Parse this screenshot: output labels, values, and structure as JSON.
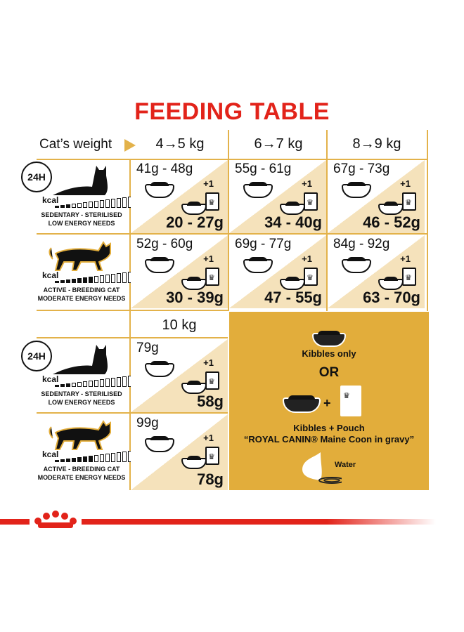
{
  "title": "FEEDING TABLE",
  "header": {
    "weight_label": "Cat’s weight",
    "cols": [
      "4→5 kg",
      "6→7 kg",
      "8→9 kg"
    ],
    "col4": "10 kg"
  },
  "profiles": [
    {
      "kcal": "kcal",
      "line1": "SEDENTARY - STERILISED",
      "line2": "LOW ENERGY NEEDS",
      "badge": "24H"
    },
    {
      "kcal": "kcal",
      "line1": "ACTIVE - BREEDING CAT",
      "line2": "MODERATE ENERGY NEEDS"
    }
  ],
  "rows": [
    [
      {
        "kibbles": "41g - 48g",
        "mixed": "20 - 27g"
      },
      {
        "kibbles": "55g - 61g",
        "mixed": "34 - 40g"
      },
      {
        "kibbles": "67g - 73g",
        "mixed": "46 - 52g"
      }
    ],
    [
      {
        "kibbles": "52g - 60g",
        "mixed": "30 - 39g"
      },
      {
        "kibbles": "69g - 77g",
        "mixed": "47 - 55g"
      },
      {
        "kibbles": "84g - 92g",
        "mixed": "63 - 70g"
      }
    ]
  ],
  "rows10": [
    {
      "kibbles": "79g",
      "mixed": "58g"
    },
    {
      "kibbles": "99g",
      "mixed": "78g"
    }
  ],
  "plus_one": "+1",
  "legend": {
    "kibbles_only": "Kibbles only",
    "or": "OR",
    "plus": "+",
    "kibbles_pouch": "Kibbles + Pouch",
    "pouch_name": "“ROYAL CANIN® Maine Coon in gravy”",
    "water": "Water"
  },
  "colors": {
    "title": "#e2231a",
    "gold": "#e2ad3b",
    "beige": "#f5e2bb",
    "brand_red": "#e2231a"
  }
}
